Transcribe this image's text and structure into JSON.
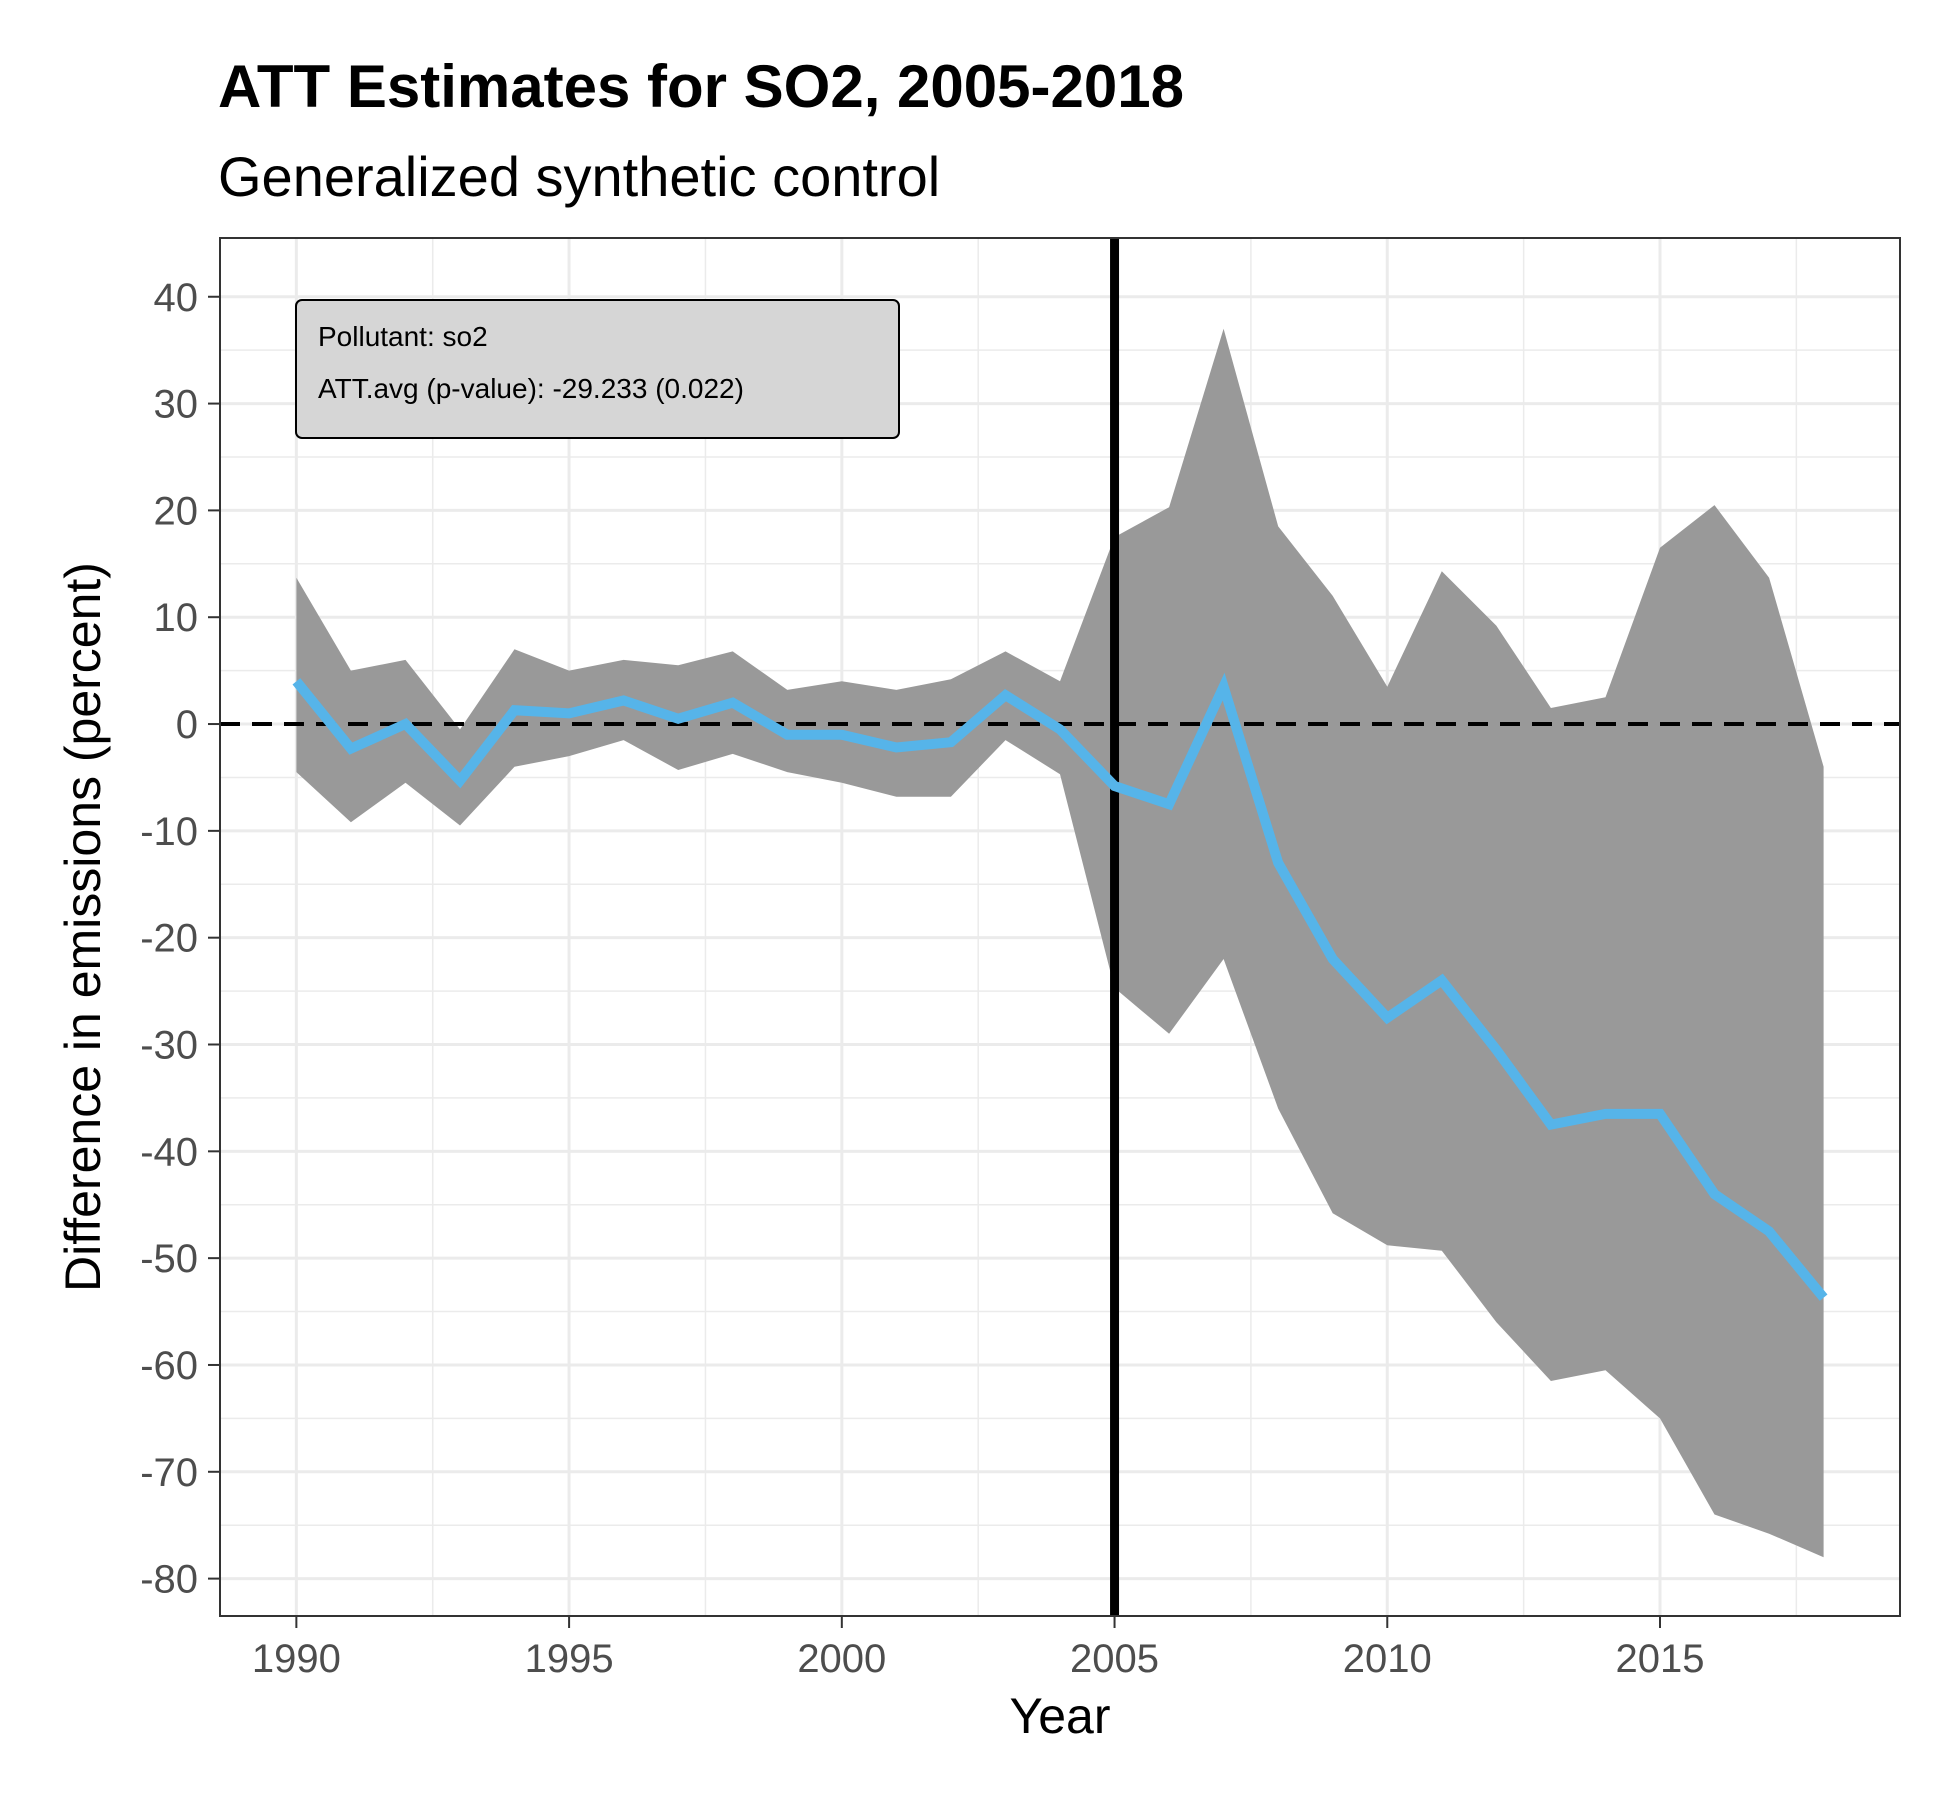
{
  "chart_data": {
    "type": "line",
    "title": "ATT Estimates for SO2, 2005-2018",
    "subtitle": "Generalized synthetic control",
    "xlabel": "Year",
    "ylabel": "Difference in emissions (percent)",
    "xlim": [
      1988.6,
      2019.4
    ],
    "ylim": [
      -83.5,
      45.5
    ],
    "x_ticks": [
      1990,
      1995,
      2000,
      2005,
      2010,
      2015
    ],
    "y_ticks": [
      40,
      30,
      20,
      10,
      0,
      -10,
      -20,
      -30,
      -40,
      -50,
      -60,
      -70,
      -80
    ],
    "y_tick_labels": [
      "40",
      "30",
      "20",
      "10",
      "0",
      "-10",
      "-20",
      "-30",
      "-40",
      "-50",
      "-60",
      "-70",
      "-80"
    ],
    "grid": true,
    "treatment_year": 2005,
    "reference_line_y": 0,
    "x": [
      1990,
      1991,
      1992,
      1993,
      1994,
      1995,
      1996,
      1997,
      1998,
      1999,
      2000,
      2001,
      2002,
      2003,
      2004,
      2005,
      2006,
      2007,
      2008,
      2009,
      2010,
      2011,
      2012,
      2013,
      2014,
      2015,
      2016,
      2017,
      2018
    ],
    "series": [
      {
        "values": [
          4,
          -2.3,
          0,
          -5.3,
          1.3,
          1,
          2.2,
          0.5,
          2,
          -1,
          -1,
          -2.2,
          -1.7,
          2.7,
          -0.5,
          -5.8,
          -7.5,
          3.5,
          -13,
          -22,
          -27.5,
          -24,
          -30.5,
          -37.5,
          -36.5,
          -36.5,
          -44,
          -47.5,
          -53.7
        ],
        "color": "#56b4e9"
      }
    ],
    "band": {
      "upper": [
        13.7,
        5,
        6,
        -0.5,
        7,
        5,
        6,
        5.5,
        6.8,
        3.2,
        4,
        3.2,
        4.2,
        6.8,
        4,
        17.5,
        20.3,
        37,
        18.5,
        12,
        3.5,
        14.3,
        9.2,
        1.5,
        2.5,
        16.5,
        20.5,
        13.7,
        -4
      ],
      "lower": [
        -4.5,
        -9.2,
        -5.5,
        -9.5,
        -4,
        -3,
        -1.5,
        -4.3,
        -2.8,
        -4.5,
        -5.5,
        -6.8,
        -6.8,
        -1.5,
        -4.7,
        -24.7,
        -29,
        -22,
        -36,
        -45.8,
        -48.8,
        -49.3,
        -56,
        -61.5,
        -60.5,
        -65,
        -74,
        -75.8,
        -78
      ],
      "color": "#999999"
    }
  },
  "annotation": {
    "line1": "Pollutant: so2",
    "line2": "ATT.avg (p-value): -29.233 (0.022)"
  },
  "colors": {
    "line": "#56b4e9",
    "band": "#999999",
    "grid": "#ebebeb",
    "annotation_fill": "#d6d6d6"
  }
}
